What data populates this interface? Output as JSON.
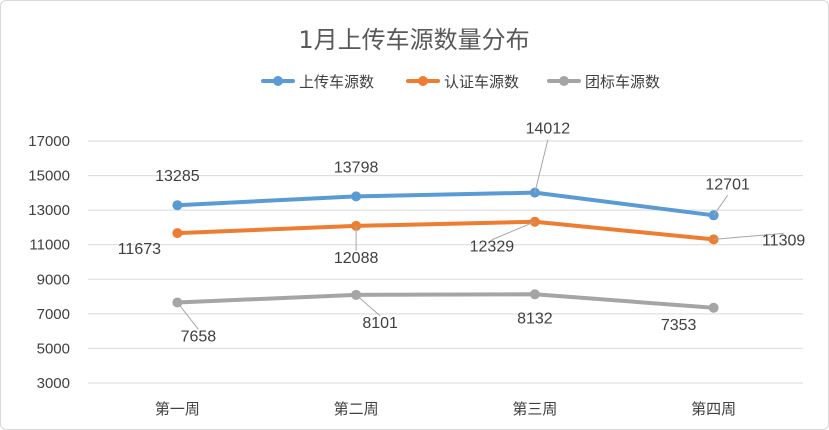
{
  "chart_data": {
    "type": "line",
    "title": "1月上传车源数量分布",
    "categories": [
      "第一周",
      "第二周",
      "第三周",
      "第四周"
    ],
    "series": [
      {
        "name": "上传车源数",
        "color": "#5b9bd5",
        "values": [
          13285,
          13798,
          14012,
          12701
        ]
      },
      {
        "name": "认证车源数",
        "color": "#ed7d31",
        "values": [
          11673,
          12088,
          12329,
          11309
        ]
      },
      {
        "name": "团标车源数",
        "color": "#a5a5a5",
        "values": [
          7658,
          8101,
          8132,
          7353
        ]
      }
    ],
    "ylim": [
      3000,
      17000
    ],
    "yticks": [
      3000,
      5000,
      7000,
      9000,
      11000,
      13000,
      15000,
      17000
    ],
    "grid": true,
    "legend": "top"
  }
}
